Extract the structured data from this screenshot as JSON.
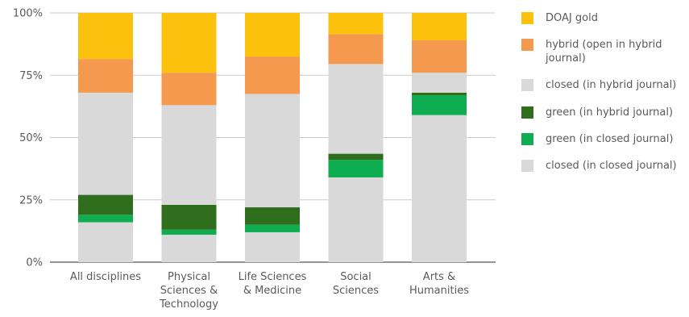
{
  "chart_data": {
    "type": "bar",
    "stacked": true,
    "categories": [
      [
        "All disciplines"
      ],
      [
        "Physical",
        "Sciences &",
        "Technology"
      ],
      [
        "Life Sciences",
        "& Medicine"
      ],
      [
        "Social",
        "Sciences"
      ],
      [
        "Arts &",
        "Humanities"
      ]
    ],
    "ylim": [
      0,
      100
    ],
    "yticks": [
      {
        "value": 0,
        "label": "0%"
      },
      {
        "value": 25,
        "label": "25%"
      },
      {
        "value": 50,
        "label": "50%"
      },
      {
        "value": 75,
        "label": "75%"
      },
      {
        "value": 100,
        "label": "100%"
      }
    ],
    "grid": true,
    "legend_position": "right",
    "series": [
      {
        "name": "closed (in closed journal)",
        "color": "#d9d9d9",
        "values": [
          16,
          11,
          12,
          34,
          59
        ]
      },
      {
        "name": "green (in closed journal)",
        "color": "#0fad51",
        "values": [
          3,
          2,
          3,
          7,
          8
        ]
      },
      {
        "name": "green (in hybrid journal)",
        "color": "#2e6e1c",
        "values": [
          8,
          10,
          7,
          2.5,
          1
        ]
      },
      {
        "name": "closed (in hybrid journal)",
        "color": "#d9d9d9",
        "values": [
          41,
          40,
          45.5,
          36,
          8
        ]
      },
      {
        "name": "hybrid (open in hybrid journal)",
        "color": "#f4994d",
        "values": [
          13.5,
          13,
          15,
          12,
          13
        ]
      },
      {
        "name": "DOAJ gold",
        "color": "#fcc10c",
        "values": [
          18.5,
          24,
          17.5,
          8.5,
          11
        ]
      }
    ]
  },
  "legend": {
    "items": [
      {
        "lines": [
          "DOAJ gold"
        ],
        "color": "#fcc10c"
      },
      {
        "lines": [
          "hybrid (open in hybrid",
          "journal)"
        ],
        "color": "#f4994d"
      },
      {
        "lines": [
          "closed (in hybrid journal)"
        ],
        "color": "#d9d9d9"
      },
      {
        "lines": [
          "green (in hybrid journal)"
        ],
        "color": "#2e6e1c"
      },
      {
        "lines": [
          "green (in closed journal)"
        ],
        "color": "#0fad51"
      },
      {
        "lines": [
          "closed (in closed journal)"
        ],
        "color": "#d9d9d9"
      }
    ]
  }
}
